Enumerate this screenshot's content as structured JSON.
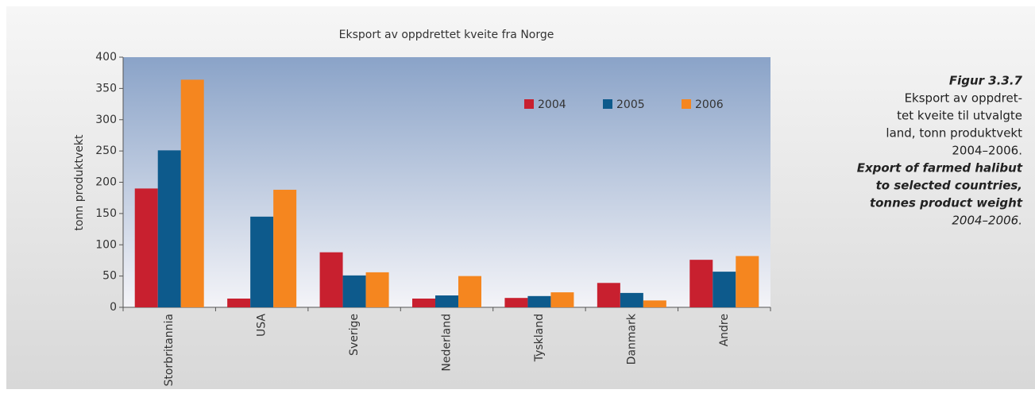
{
  "chart_data": {
    "type": "bar",
    "title": "Eksport av oppdrettet kveite fra Norge",
    "y_label": "tonn produktvekt",
    "categories": [
      "Storbritannia",
      "USA",
      "Sverige",
      "Nederland",
      "Tyskland",
      "Danmark",
      "Andre"
    ],
    "series": [
      {
        "name": "2004",
        "color": "#c8202f",
        "values": [
          190,
          14,
          88,
          14,
          15,
          39,
          76
        ]
      },
      {
        "name": "2005",
        "color": "#0d5a8c",
        "values": [
          251,
          145,
          51,
          19,
          18,
          23,
          57
        ]
      },
      {
        "name": "2006",
        "color": "#f5861f",
        "values": [
          364,
          188,
          56,
          50,
          24,
          11,
          82
        ]
      }
    ],
    "ylim": [
      0,
      400
    ],
    "yticks": [
      0,
      50,
      100,
      150,
      200,
      250,
      300,
      350,
      400
    ],
    "grid": false,
    "legend": "upper right"
  },
  "caption": {
    "title": "Figur 3.3.7",
    "norwegian": [
      "Eksport av oppdret-",
      "tet kveite til utvalgte",
      "land, tonn produktvekt",
      "2004–2006."
    ],
    "english": [
      "Export of farmed halibut",
      "to selected countries,",
      "tonnes product weight",
      "2004–2006."
    ]
  }
}
